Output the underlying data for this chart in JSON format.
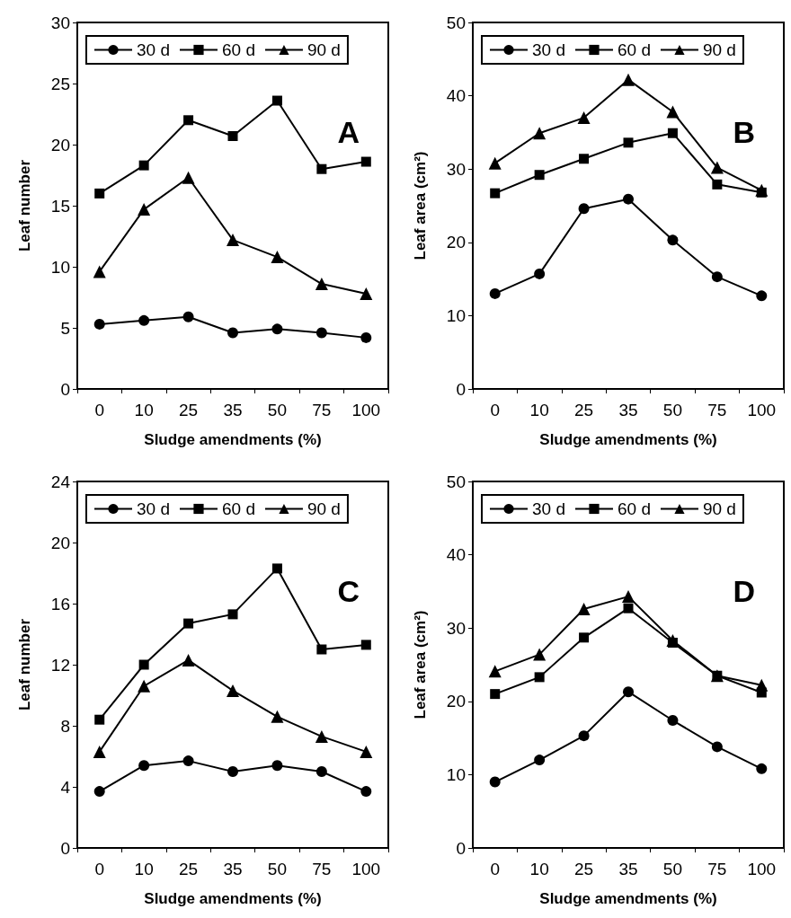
{
  "chart_data": [
    {
      "type": "line",
      "xlabel": "Sludge amendments (%)",
      "ylabel": "Leaf number",
      "annotations": [
        "A"
      ],
      "categories": [
        "0",
        "10",
        "25",
        "35",
        "50",
        "75",
        "100"
      ],
      "ylim": [
        0,
        30
      ],
      "yticks": [
        0,
        5,
        10,
        15,
        20,
        25,
        30
      ],
      "grid": false,
      "legend": "top",
      "line_style": "solid",
      "series": [
        {
          "name": "30 d",
          "color": "#000000",
          "marker": "circle",
          "values": [
            5.3,
            5.6,
            5.9,
            4.6,
            4.9,
            4.6,
            4.2
          ]
        },
        {
          "name": "60 d",
          "color": "#000000",
          "marker": "square",
          "values": [
            16.0,
            18.3,
            22.0,
            20.7,
            23.6,
            18.0,
            18.6
          ]
        },
        {
          "name": "90 d",
          "color": "#000000",
          "marker": "triangle",
          "values": [
            9.6,
            14.7,
            17.3,
            12.2,
            10.8,
            8.6,
            7.8
          ]
        }
      ]
    },
    {
      "type": "line",
      "xlabel": "Sludge amendments (%)",
      "ylabel": "Leaf area (cm²)",
      "annotations": [
        "B"
      ],
      "categories": [
        "0",
        "10",
        "25",
        "35",
        "50",
        "75",
        "100"
      ],
      "ylim": [
        0,
        50
      ],
      "yticks": [
        0,
        10,
        20,
        30,
        40,
        50
      ],
      "grid": false,
      "legend": "top",
      "line_style": "solid",
      "series": [
        {
          "name": "30 d",
          "color": "#000000",
          "marker": "circle",
          "values": [
            13.0,
            15.7,
            24.6,
            25.9,
            20.3,
            15.3,
            12.7
          ]
        },
        {
          "name": "60 d",
          "color": "#000000",
          "marker": "square",
          "values": [
            26.7,
            29.2,
            31.4,
            33.6,
            34.9,
            27.9,
            26.8
          ]
        },
        {
          "name": "90 d",
          "color": "#000000",
          "marker": "triangle",
          "values": [
            30.8,
            34.9,
            37.0,
            42.2,
            37.8,
            30.2,
            27.1
          ]
        }
      ]
    },
    {
      "type": "line",
      "xlabel": "Sludge amendments (%)",
      "ylabel": "Leaf number",
      "annotations": [
        "C"
      ],
      "categories": [
        "0",
        "10",
        "25",
        "35",
        "50",
        "75",
        "100"
      ],
      "ylim": [
        0,
        24
      ],
      "yticks": [
        0,
        4,
        8,
        12,
        16,
        20,
        24
      ],
      "grid": false,
      "legend": "top",
      "line_style": "solid",
      "series": [
        {
          "name": "30 d",
          "color": "#000000",
          "marker": "circle",
          "values": [
            3.7,
            5.4,
            5.7,
            5.0,
            5.4,
            5.0,
            3.7
          ]
        },
        {
          "name": "60 d",
          "color": "#000000",
          "marker": "square",
          "values": [
            8.4,
            12.0,
            14.7,
            15.3,
            18.3,
            13.0,
            13.3
          ]
        },
        {
          "name": "90 d",
          "color": "#000000",
          "marker": "triangle",
          "values": [
            6.3,
            10.6,
            12.3,
            10.3,
            8.6,
            7.3,
            6.3
          ]
        }
      ]
    },
    {
      "type": "line",
      "xlabel": "Sludge amendments (%)",
      "ylabel": "Leaf area (cm²)",
      "annotations": [
        "D"
      ],
      "categories": [
        "0",
        "10",
        "25",
        "35",
        "50",
        "75",
        "100"
      ],
      "ylim": [
        0,
        50
      ],
      "yticks": [
        0,
        10,
        20,
        30,
        40,
        50
      ],
      "grid": false,
      "legend": "top",
      "line_style": "solid",
      "series": [
        {
          "name": "30 d",
          "color": "#000000",
          "marker": "circle",
          "values": [
            9.0,
            12.0,
            15.3,
            21.3,
            17.4,
            13.8,
            10.8
          ]
        },
        {
          "name": "60 d",
          "color": "#000000",
          "marker": "square",
          "values": [
            21.0,
            23.3,
            28.7,
            32.7,
            28.0,
            23.5,
            21.2
          ]
        },
        {
          "name": "90 d",
          "color": "#000000",
          "marker": "triangle",
          "values": [
            24.1,
            26.4,
            32.6,
            34.3,
            28.3,
            23.5,
            22.2
          ]
        }
      ]
    }
  ]
}
